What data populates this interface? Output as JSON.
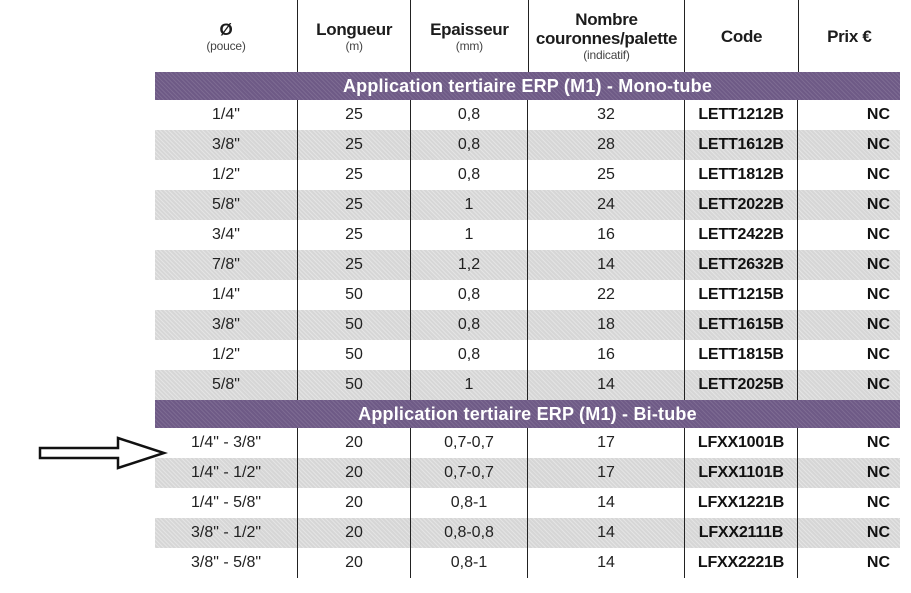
{
  "headers": [
    {
      "main": "Ø",
      "sub": "(pouce)"
    },
    {
      "main": "Longueur",
      "sub": "(m)"
    },
    {
      "main": "Epaisseur",
      "sub": "(mm)"
    },
    {
      "main": "Nombre couronnes/palette",
      "sub": "(indicatif)"
    },
    {
      "main": "Code",
      "sub": ""
    },
    {
      "main": "Prix €",
      "sub": ""
    }
  ],
  "sections": [
    {
      "title": "Application tertiaire ERP (M1) - Mono-tube",
      "rows": [
        [
          "1/4\"",
          "25",
          "0,8",
          "32",
          "LETT1212B",
          "NC"
        ],
        [
          "3/8\"",
          "25",
          "0,8",
          "28",
          "LETT1612B",
          "NC"
        ],
        [
          "1/2\"",
          "25",
          "0,8",
          "25",
          "LETT1812B",
          "NC"
        ],
        [
          "5/8\"",
          "25",
          "1",
          "24",
          "LETT2022B",
          "NC"
        ],
        [
          "3/4\"",
          "25",
          "1",
          "16",
          "LETT2422B",
          "NC"
        ],
        [
          "7/8\"",
          "25",
          "1,2",
          "14",
          "LETT2632B",
          "NC"
        ],
        [
          "1/4\"",
          "50",
          "0,8",
          "22",
          "LETT1215B",
          "NC"
        ],
        [
          "3/8\"",
          "50",
          "0,8",
          "18",
          "LETT1615B",
          "NC"
        ],
        [
          "1/2\"",
          "50",
          "0,8",
          "16",
          "LETT1815B",
          "NC"
        ],
        [
          "5/8\"",
          "50",
          "1",
          "14",
          "LETT2025B",
          "NC"
        ]
      ]
    },
    {
      "title": "Application tertiaire ERP (M1) - Bi-tube",
      "rows": [
        [
          "1/4\" - 3/8\"",
          "20",
          "0,7-0,7",
          "17",
          "LFXX1001B",
          "NC"
        ],
        [
          "1/4\" - 1/2\"",
          "20",
          "0,7-0,7",
          "17",
          "LFXX1101B",
          "NC"
        ],
        [
          "1/4\" - 5/8\"",
          "20",
          "0,8-1",
          "14",
          "LFXX1221B",
          "NC"
        ],
        [
          "3/8\" - 1/2\"",
          "20",
          "0,8-0,8",
          "14",
          "LFXX2111B",
          "NC"
        ],
        [
          "3/8\" - 5/8\"",
          "20",
          "0,8-1",
          "14",
          "LFXX2221B",
          "NC"
        ]
      ]
    }
  ],
  "colors": {
    "section_bg": "#6e5a86",
    "shaded_row": "#d6d6d6"
  },
  "icons": {
    "pointer": "right-arrow-icon"
  }
}
